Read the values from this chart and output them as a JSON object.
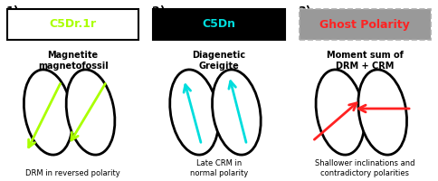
{
  "panel1": {
    "num_label": "1)",
    "box_label": "C5Dr.1r",
    "box_bg": "#ffffff",
    "box_text_color": "#aaff00",
    "box_border": "#000000",
    "subtitle": "Magnetite\nmagnetofossil",
    "caption": "DRM in reversed polarity",
    "arrow_color": "#aaff00"
  },
  "panel2": {
    "num_label": "2)",
    "box_label": "C5Dn",
    "box_bg": "#000000",
    "box_text_color": "#00dddd",
    "box_border": "#000000",
    "subtitle": "Diagenetic\nGreigite",
    "caption": "Late CRM in\nnormal polarity",
    "arrow_color": "#00dddd"
  },
  "panel3": {
    "num_label": "3)",
    "box_label": "Ghost Polarity",
    "box_bg": "#999999",
    "box_text_color": "#ff2222",
    "box_border": "#aaaaaa",
    "subtitle": "Moment sum of\nDRM + CRM",
    "caption": "Shallower inclinations and\ncontradictory polarities",
    "arrow_color": "#ff2222"
  },
  "bg_color": "#ffffff",
  "figsize": [
    4.84,
    2.0
  ],
  "dpi": 100
}
